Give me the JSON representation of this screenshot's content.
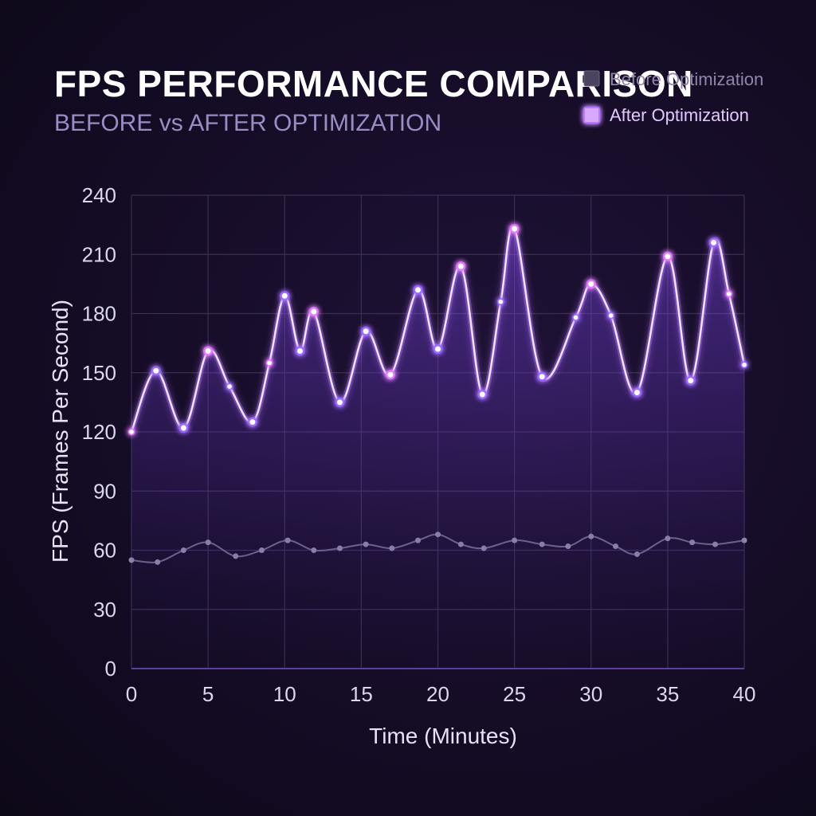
{
  "chart_data": {
    "type": "line",
    "title": "FPS PERFORMANCE COMPARISON",
    "subtitle": "BEFORE vs AFTER OPTIMIZATION",
    "xlabel": "Time (Minutes)",
    "ylabel": "FPS (Frames Per Second)",
    "xlim": [
      0,
      40
    ],
    "ylim": [
      0,
      240
    ],
    "x_ticks": [
      0,
      5,
      10,
      15,
      20,
      25,
      30,
      35,
      40
    ],
    "y_ticks": [
      0,
      30,
      60,
      90,
      120,
      150,
      180,
      210,
      240
    ],
    "grid": true,
    "legend_position": "top-right",
    "series": [
      {
        "name": "Before Optimization",
        "color": "#6f6788",
        "x": [
          0,
          1.7,
          3.4,
          5,
          6.8,
          8.5,
          10.2,
          11.9,
          13.6,
          15.3,
          17,
          18.7,
          20,
          21.5,
          23,
          25,
          26.8,
          28.5,
          30,
          31.6,
          33,
          35,
          36.6,
          38.1,
          40
        ],
        "y": [
          55,
          54,
          60,
          64,
          57,
          60,
          65,
          60,
          61,
          63,
          61,
          65,
          68,
          63,
          61,
          65,
          63,
          62,
          67,
          62,
          58,
          66,
          64,
          63,
          65
        ]
      },
      {
        "name": "After Optimization",
        "color": "#b777ff",
        "x": [
          0,
          1.6,
          3.4,
          5,
          6.4,
          7.9,
          9,
          10,
          11,
          11.9,
          13.6,
          15.3,
          16.9,
          18.7,
          20,
          21.5,
          22.9,
          24.1,
          25,
          26.8,
          29,
          30,
          31.3,
          33,
          35,
          36.5,
          38,
          39,
          40
        ],
        "y": [
          120,
          151,
          122,
          161,
          143,
          125,
          155,
          189,
          161,
          181,
          135,
          171,
          149,
          192,
          162,
          204,
          139,
          186,
          223,
          148,
          178,
          195,
          179,
          140,
          209,
          146,
          216,
          190,
          154
        ]
      }
    ]
  }
}
